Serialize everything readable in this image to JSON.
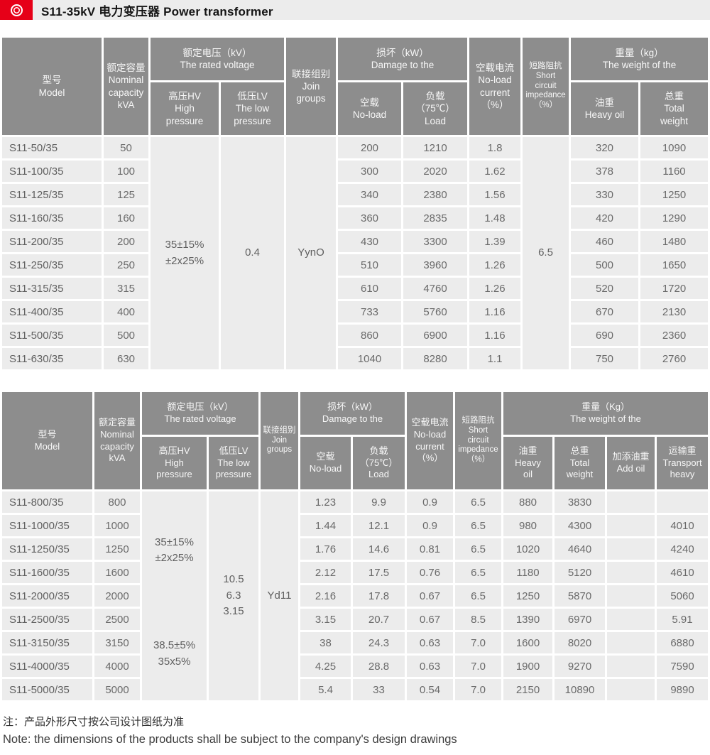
{
  "title": {
    "text": "S11-35kV 电力变压器 Power transformer"
  },
  "icons": {
    "logo": "concentric-rings-emblem",
    "logo_color": "#e60018"
  },
  "colors": {
    "header_bg": "#8d8d8d",
    "cell_bg": "#ececec",
    "accent_red": "#e60018",
    "titlebar_bg": "#ececec"
  },
  "table1": {
    "headers": {
      "model": "型号\nModel",
      "capacity": "额定容量\nNominal\ncapacity\nkVA",
      "voltage_group": "额定电压（kV）\nThe rated voltage",
      "hv": "高压HV\nHigh\npressure",
      "lv": "低压LV\nThe low\npressure",
      "join": "联接组别\nJoin\ngroups",
      "damage_group": "损坏（kW）\nDamage to the",
      "noload": "空载\nNo-load",
      "load": "负载\n（75℃）\nLoad",
      "current": "空载电流\nNo-load\ncurrent\n（%）",
      "impedance": "短路阻抗\nShort\ncircuit\nimpedance\n（%）",
      "weight_group": "重量（kg）\nThe weight of the",
      "oil": "油重\nHeavy oil",
      "total": "总重\nTotal\nweight"
    },
    "spans": {
      "hv": "35±15%\n±2x25%",
      "lv": "0.4",
      "join": "YynO",
      "impedance": "6.5"
    },
    "rows": [
      {
        "model": "S11-50/35",
        "kva": "50",
        "noload": "200",
        "load": "1210",
        "current": "1.8",
        "oil": "320",
        "total": "1090"
      },
      {
        "model": "S11-100/35",
        "kva": "100",
        "noload": "300",
        "load": "2020",
        "current": "1.62",
        "oil": "378",
        "total": "1160"
      },
      {
        "model": "S11-125/35",
        "kva": "125",
        "noload": "340",
        "load": "2380",
        "current": "1.56",
        "oil": "330",
        "total": "1250"
      },
      {
        "model": "S11-160/35",
        "kva": "160",
        "noload": "360",
        "load": "2835",
        "current": "1.48",
        "oil": "420",
        "total": "1290"
      },
      {
        "model": "S11-200/35",
        "kva": "200",
        "noload": "430",
        "load": "3300",
        "current": "1.39",
        "oil": "460",
        "total": "1480"
      },
      {
        "model": "S11-250/35",
        "kva": "250",
        "noload": "510",
        "load": "3960",
        "current": "1.26",
        "oil": "500",
        "total": "1650"
      },
      {
        "model": "S11-315/35",
        "kva": "315",
        "noload": "610",
        "load": "4760",
        "current": "1.26",
        "oil": "520",
        "total": "1720"
      },
      {
        "model": "S11-400/35",
        "kva": "400",
        "noload": "733",
        "load": "5760",
        "current": "1.16",
        "oil": "670",
        "total": "2130"
      },
      {
        "model": "S11-500/35",
        "kva": "500",
        "noload": "860",
        "load": "6900",
        "current": "1.16",
        "oil": "690",
        "total": "2360"
      },
      {
        "model": "S11-630/35",
        "kva": "630",
        "noload": "1040",
        "load": "8280",
        "current": "1.1",
        "oil": "750",
        "total": "2760"
      }
    ]
  },
  "table2": {
    "headers": {
      "model": "型号\nModel",
      "capacity": "额定容量\nNominal\ncapacity\nkVA",
      "voltage_group": "额定电压（kV）\nThe rated voltage",
      "hv": "高压HV\nHigh\npressure",
      "lv": "低压LV\nThe low\npressure",
      "join": "联接组别\nJoin\ngroups",
      "damage_group": "损坏（kW）\nDamage to the",
      "noload": "空载\nNo-load",
      "load": "负载\n（75℃）\nLoad",
      "current": "空载电流\nNo-load\ncurrent\n（%）",
      "impedance": "短路阻抗\nShort\ncircuit\nimpedance\n（%）",
      "weight_group": "重量（Kg）\nThe weight of the",
      "oil": "油重\nHeavy\noil",
      "total": "总重\nTotal\nweight",
      "add_oil": "加添油重\nAdd oil",
      "transport": "运输重\nTransport\nheavy"
    },
    "spans": {
      "hv_top": "35±15%\n±2x25%",
      "hv_bottom": "38.5±5%\n35x5%",
      "lv": "10.5\n6.3\n3.15",
      "join": "Yd11"
    },
    "rows": [
      {
        "model": "S11-800/35",
        "kva": "800",
        "noload": "1.23",
        "load": "9.9",
        "current": "0.9",
        "impedance": "6.5",
        "oil": "880",
        "total": "3830",
        "add_oil": "",
        "transport": ""
      },
      {
        "model": "S11-1000/35",
        "kva": "1000",
        "noload": "1.44",
        "load": "12.1",
        "current": "0.9",
        "impedance": "6.5",
        "oil": "980",
        "total": "4300",
        "add_oil": "",
        "transport": "4010"
      },
      {
        "model": "S11-1250/35",
        "kva": "1250",
        "noload": "1.76",
        "load": "14.6",
        "current": "0.81",
        "impedance": "6.5",
        "oil": "1020",
        "total": "4640",
        "add_oil": "",
        "transport": "4240"
      },
      {
        "model": "S11-1600/35",
        "kva": "1600",
        "noload": "2.12",
        "load": "17.5",
        "current": "0.76",
        "impedance": "6.5",
        "oil": "1180",
        "total": "5120",
        "add_oil": "",
        "transport": "4610"
      },
      {
        "model": "S11-2000/35",
        "kva": "2000",
        "noload": "2.16",
        "load": "17.8",
        "current": "0.67",
        "impedance": "6.5",
        "oil": "1250",
        "total": "5870",
        "add_oil": "",
        "transport": "5060"
      },
      {
        "model": "S11-2500/35",
        "kva": "2500",
        "noload": "3.15",
        "load": "20.7",
        "current": "0.67",
        "impedance": "8.5",
        "oil": "1390",
        "total": "6970",
        "add_oil": "",
        "transport": "5.91"
      },
      {
        "model": "S11-3150/35",
        "kva": "3150",
        "noload": "38",
        "load": "24.3",
        "current": "0.63",
        "impedance": "7.0",
        "oil": "1600",
        "total": "8020",
        "add_oil": "",
        "transport": "6880"
      },
      {
        "model": "S11-4000/35",
        "kva": "4000",
        "noload": "4.25",
        "load": "28.8",
        "current": "0.63",
        "impedance": "7.0",
        "oil": "1900",
        "total": "9270",
        "add_oil": "",
        "transport": "7590"
      },
      {
        "model": "S11-5000/35",
        "kva": "5000",
        "noload": "5.4",
        "load": "33",
        "current": "0.54",
        "impedance": "7.0",
        "oil": "2150",
        "total": "10890",
        "add_oil": "",
        "transport": "9890"
      }
    ]
  },
  "notes": {
    "cn": "注：产品外形尺寸按公司设计图纸为准",
    "en": "Note: the dimensions of the products shall be subject to the company's design drawings"
  }
}
